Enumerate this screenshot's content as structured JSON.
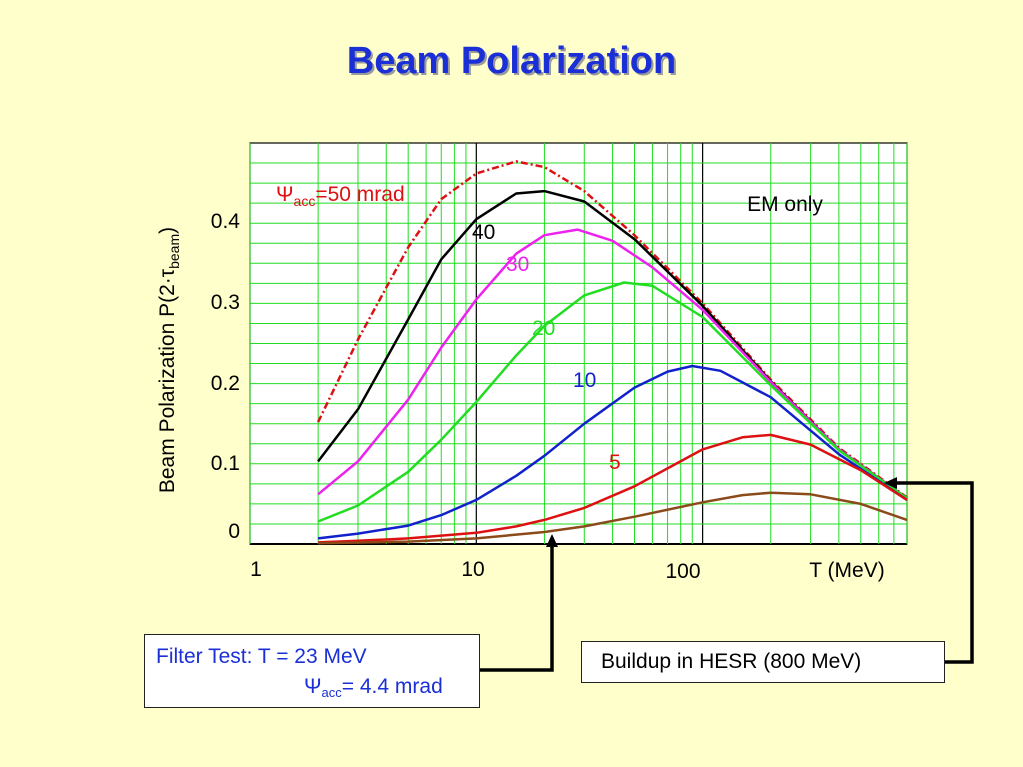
{
  "slide": {
    "title": "Beam Polarization",
    "filter_box": {
      "line1": "Filter Test: T = 23 MeV",
      "line2_symbol": "Ψ",
      "line2_sub": "acc",
      "line2_rest": "= 4.4 mrad"
    },
    "buildup_box": "Buildup in HESR (800 MeV)"
  },
  "colors": {
    "background": "#ffffcc",
    "title": "#1a2fd6",
    "grid": "#22dd22",
    "arrow": "#000000"
  },
  "chart_data": {
    "type": "line",
    "x_scale": "log",
    "xlim": [
      1,
      800
    ],
    "ylim": [
      0,
      0.5
    ],
    "x_ticks": [
      1,
      10,
      100
    ],
    "x_tick_labels": [
      "1",
      "10",
      "100"
    ],
    "y_ticks": [
      0,
      0.1,
      0.2,
      0.3,
      0.4
    ],
    "y_tick_labels": [
      "0",
      "0.1",
      "0.2",
      "0.3",
      "0.4"
    ],
    "xlabel": "T (MeV)",
    "ylabel_main": "Beam Polarization P(2·τ",
    "ylabel_sub": "beam",
    "ylabel_end": ")",
    "grid": true,
    "annotation": "EM only",
    "series": [
      {
        "name": "Ψacc=50 mrad",
        "label_symbol": "Ψ",
        "label_sub": "acc",
        "label_rest": "=50 mrad",
        "color": "#dd1111",
        "dashed": true,
        "x": [
          2,
          3,
          5,
          7,
          10,
          15,
          20,
          30,
          50,
          100,
          200,
          400,
          800
        ],
        "y": [
          0.152,
          0.255,
          0.37,
          0.43,
          0.462,
          0.477,
          0.47,
          0.44,
          0.385,
          0.3,
          0.205,
          0.12,
          0.058
        ]
      },
      {
        "name": "40",
        "label": "40",
        "color": "#000000",
        "dashed": false,
        "x": [
          2,
          3,
          5,
          7,
          10,
          15,
          20,
          30,
          50,
          100,
          200,
          400,
          800
        ],
        "y": [
          0.103,
          0.168,
          0.28,
          0.355,
          0.405,
          0.437,
          0.44,
          0.427,
          0.38,
          0.297,
          0.203,
          0.118,
          0.057
        ]
      },
      {
        "name": "30",
        "label": "30",
        "color": "#ee22ee",
        "dashed": false,
        "x": [
          2,
          3,
          5,
          7,
          10,
          15,
          20,
          28,
          40,
          60,
          100,
          200,
          400,
          800
        ],
        "y": [
          0.062,
          0.103,
          0.18,
          0.245,
          0.305,
          0.362,
          0.385,
          0.392,
          0.378,
          0.345,
          0.292,
          0.202,
          0.118,
          0.057
        ]
      },
      {
        "name": "20",
        "label": "20",
        "color": "#22dd22",
        "dashed": false,
        "x": [
          2,
          3,
          5,
          7,
          10,
          15,
          20,
          30,
          45,
          60,
          100,
          200,
          400,
          800
        ],
        "y": [
          0.028,
          0.048,
          0.09,
          0.13,
          0.177,
          0.235,
          0.272,
          0.31,
          0.326,
          0.322,
          0.283,
          0.198,
          0.117,
          0.057
        ]
      },
      {
        "name": "10",
        "label": "10",
        "color": "#1122cc",
        "dashed": false,
        "x": [
          2,
          3,
          5,
          7,
          10,
          15,
          20,
          30,
          50,
          70,
          90,
          120,
          200,
          400,
          800
        ],
        "y": [
          0.007,
          0.013,
          0.023,
          0.036,
          0.055,
          0.085,
          0.11,
          0.15,
          0.195,
          0.215,
          0.222,
          0.216,
          0.183,
          0.112,
          0.055
        ]
      },
      {
        "name": "5",
        "label": "5",
        "color": "#dd1111",
        "dashed": false,
        "x": [
          2,
          3,
          5,
          10,
          15,
          20,
          30,
          50,
          100,
          150,
          200,
          300,
          500,
          800
        ],
        "y": [
          0.002,
          0.004,
          0.007,
          0.014,
          0.022,
          0.03,
          0.045,
          0.072,
          0.118,
          0.133,
          0.136,
          0.124,
          0.092,
          0.055
        ]
      },
      {
        "name": "brown",
        "color": "#8b4a1a",
        "dashed": false,
        "x": [
          2,
          5,
          10,
          20,
          30,
          50,
          100,
          150,
          200,
          300,
          500,
          800
        ],
        "y": [
          0.001,
          0.003,
          0.007,
          0.015,
          0.022,
          0.034,
          0.052,
          0.061,
          0.064,
          0.062,
          0.05,
          0.03
        ]
      }
    ]
  }
}
